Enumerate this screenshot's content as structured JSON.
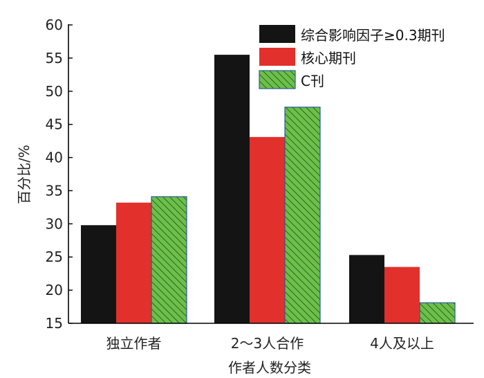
{
  "chart_data": {
    "type": "bar",
    "categories": [
      "独立作者",
      "2～3人合作",
      "4人及以上"
    ],
    "series": [
      {
        "name": "综合影响因子≥0.3期刊",
        "values": [
          29.8,
          55.5,
          25.3
        ],
        "color": "#141414",
        "pattern": "solid"
      },
      {
        "name": "核心期刊",
        "values": [
          33.2,
          43.1,
          23.5
        ],
        "color": "#e2302c",
        "pattern": "solid"
      },
      {
        "name": "C刊",
        "values": [
          34.1,
          47.6,
          18.1
        ],
        "color": "#6cc04a",
        "pattern": "hatch"
      }
    ],
    "xlabel": "作者人数分类",
    "ylabel": "百分比/%",
    "ylim": [
      15,
      60
    ],
    "yticks": [
      15,
      20,
      25,
      30,
      35,
      40,
      45,
      50,
      55,
      60
    ],
    "grid": false,
    "legend_position": "top-right"
  }
}
